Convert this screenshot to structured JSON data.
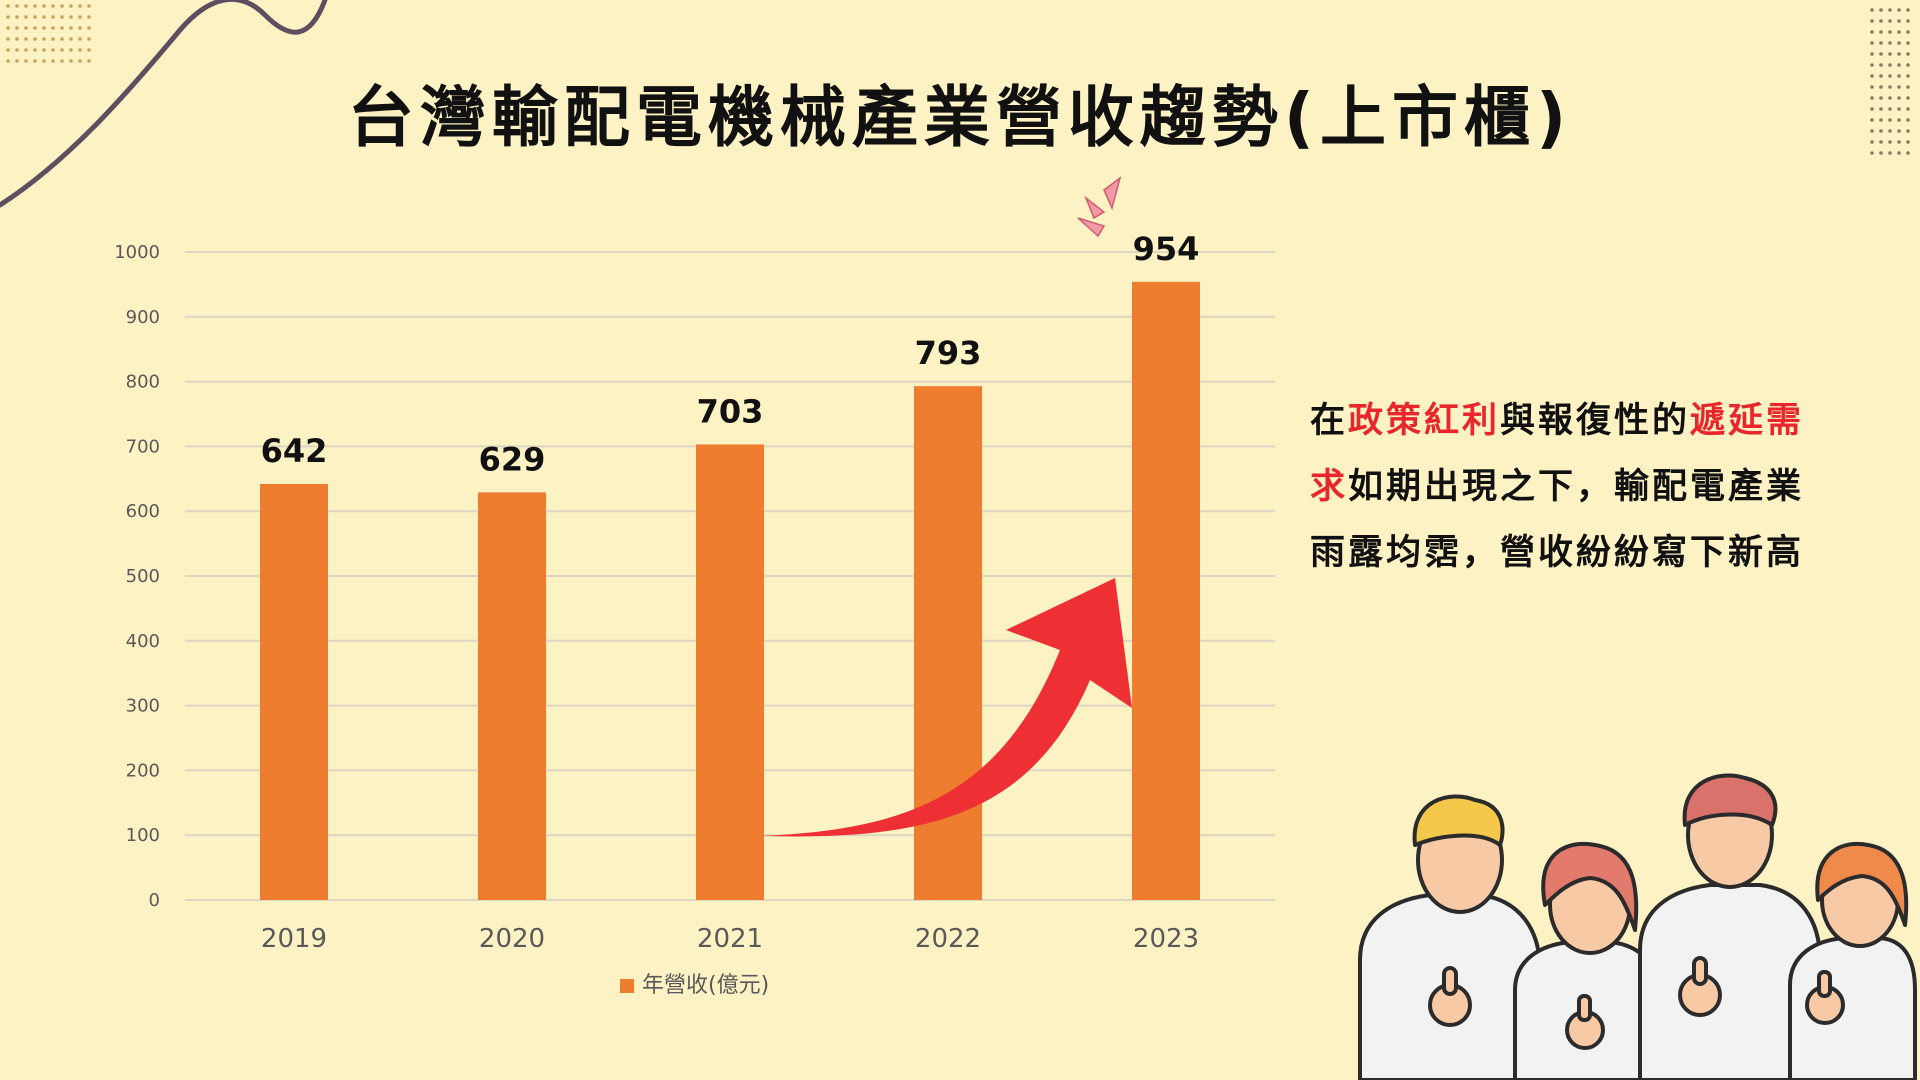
{
  "title": "台灣輸配電機械產業營收趨勢(上市櫃)",
  "colors": {
    "background": "#fdf2c4",
    "bar": "#ef7d30",
    "arrow": "#ee3034",
    "highlight": "#e8262c"
  },
  "chart_data": {
    "type": "bar",
    "categories": [
      "2019",
      "2020",
      "2021",
      "2022",
      "2023"
    ],
    "series": [
      {
        "name": "年營收(億元)",
        "values": [
          642,
          629,
          703,
          793,
          954
        ]
      }
    ],
    "data_labels": [
      "642",
      "629",
      "703",
      "793",
      "954"
    ],
    "y_ticks": [
      0,
      100,
      200,
      300,
      400,
      500,
      600,
      700,
      800,
      900,
      1000
    ],
    "ylim": [
      0,
      1000
    ],
    "grid": true,
    "legend": "bottom"
  },
  "description": {
    "line1": [
      {
        "text": "在",
        "hl": false
      },
      {
        "text": "政策紅利",
        "hl": true
      },
      {
        "text": "與報復性的",
        "hl": false
      },
      {
        "text": "遞延需",
        "hl": true
      }
    ],
    "line2": [
      {
        "text": "求",
        "hl": true
      },
      {
        "text": "如期出現之下，輸配電產業",
        "hl": false
      }
    ],
    "line3": [
      {
        "text": "雨露均霑，營收紛紛寫下新高",
        "hl": false
      }
    ]
  }
}
